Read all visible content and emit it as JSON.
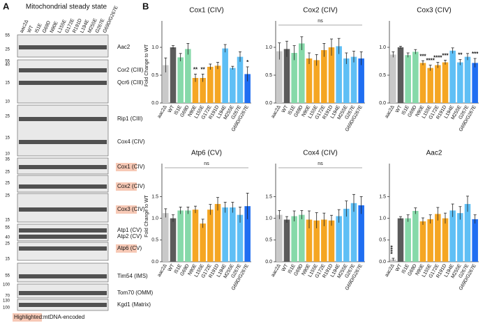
{
  "panel_a": {
    "letter": "A",
    "title": "Mitochondrial steady state",
    "lanes": [
      "aac2Δ",
      "WT",
      "I51E",
      "G69D",
      "N90E",
      "L155E",
      "G172E",
      "R191D",
      "L194E",
      "M255E",
      "G267E",
      "G69D/G267E"
    ],
    "rows": [
      {
        "labels": [
          "Aac2"
        ],
        "markers": [
          55,
          25
        ],
        "highlight": false
      },
      {
        "labels": [
          "Cor2 (CIII)",
          "Qcr6 (CIII)"
        ],
        "markers": [
          55,
          40,
          15,
          10
        ],
        "highlight": false
      },
      {
        "labels": [
          "Rip1 (CIII)",
          "Cox4 (CIV)"
        ],
        "markers": [
          25,
          15,
          10
        ],
        "highlight": false
      },
      {
        "labels": [
          "Cox1 (CIV)"
        ],
        "markers": [
          35,
          25
        ],
        "highlight": true
      },
      {
        "labels": [
          "Cox2 (CIV)"
        ],
        "markers": [
          25
        ],
        "highlight": true
      },
      {
        "labels": [
          "Cox3 (CIV)"
        ],
        "markers": [
          25,
          15
        ],
        "highlight": true
      },
      {
        "labels": [
          "Atp1 (CV)",
          "Atp2 (CV)"
        ],
        "markers": [
          55,
          40
        ],
        "highlight": false
      },
      {
        "labels": [
          "Atp6 (CV)"
        ],
        "markers": [
          25,
          15
        ],
        "highlight": true
      },
      {
        "labels": [
          "Tim54 (IMS)"
        ],
        "markers": [
          55
        ],
        "highlight": false
      },
      {
        "labels": [
          "Tom70 (OMM)"
        ],
        "markers": [
          100,
          70
        ],
        "highlight": false
      },
      {
        "labels": [
          "Kgd1 (Matrix)"
        ],
        "markers": [
          130,
          100
        ],
        "highlight": false
      }
    ],
    "footer_highlight": "Highlighted:",
    "footer_text": "mtDNA-encoded"
  },
  "panel_b_letter": "B",
  "chart_data": [
    {
      "type": "bar",
      "title": "Cox1 (CIV)",
      "y_label": "Fold Change to WT",
      "categories": [
        "aac2Δ",
        "WT",
        "I51E",
        "G69D",
        "N90E",
        "L155E",
        "G172E",
        "R191D",
        "L194E",
        "M255E",
        "G267E",
        "G69D/G267E"
      ],
      "values": [
        0.68,
        1.0,
        0.82,
        0.97,
        0.45,
        0.45,
        0.65,
        0.67,
        0.98,
        0.63,
        0.83,
        0.52
      ],
      "errors": [
        0.13,
        0.03,
        0.07,
        0.1,
        0.07,
        0.07,
        0.05,
        0.06,
        0.07,
        0.03,
        0.09,
        0.13
      ],
      "sig_labels": [
        null,
        null,
        null,
        null,
        "**",
        "**",
        null,
        null,
        null,
        null,
        null,
        "*"
      ],
      "colors": [
        "#c9c9c9",
        "#5b5b5b",
        "#86d9a9",
        "#86d9a9",
        "#f5a623",
        "#f5a623",
        "#f5a623",
        "#f5a623",
        "#5fbff5",
        "#5fbff5",
        "#5fbff5",
        "#1f6ef2"
      ],
      "ylim": [
        0,
        1.35
      ],
      "yticks": [
        {
          "value": 0,
          "label": "0.0"
        },
        {
          "value": 0.5,
          "label": "0.5"
        },
        {
          "value": 1,
          "label": "1.0"
        }
      ]
    },
    {
      "type": "bar",
      "title": "Cox2 (CIV)",
      "annotation": "ns",
      "categories": [
        "aac2Δ",
        "WT",
        "I51E",
        "G69D",
        "N90E",
        "L155E",
        "G172E",
        "R191D",
        "L194E",
        "M255E",
        "G267E",
        "G69D/G267E"
      ],
      "values": [
        0.93,
        0.97,
        0.9,
        1.07,
        0.8,
        0.77,
        0.95,
        1.0,
        1.02,
        0.8,
        0.83,
        0.8
      ],
      "errors": [
        0.15,
        0.14,
        0.13,
        0.12,
        0.1,
        0.1,
        0.12,
        0.15,
        0.14,
        0.1,
        0.1,
        0.12
      ],
      "colors": [
        "#c9c9c9",
        "#5b5b5b",
        "#86d9a9",
        "#86d9a9",
        "#f5a623",
        "#f5a623",
        "#f5a623",
        "#f5a623",
        "#5fbff5",
        "#5fbff5",
        "#5fbff5",
        "#1f6ef2"
      ],
      "ylim": [
        0,
        1.35
      ],
      "yticks": [
        {
          "value": 0,
          "label": "0.0"
        },
        {
          "value": 0.5,
          "label": "0.5"
        },
        {
          "value": 1,
          "label": "1.0"
        }
      ]
    },
    {
      "type": "bar",
      "title": "Cox3 (CIV)",
      "categories": [
        "aac2Δ",
        "WT",
        "I51E",
        "G69D",
        "N90E",
        "L155E",
        "G172E",
        "R191D",
        "L194E",
        "M255E",
        "G267E",
        "G69D/G267E"
      ],
      "values": [
        0.87,
        1.0,
        0.86,
        0.92,
        0.72,
        0.63,
        0.68,
        0.73,
        0.94,
        0.73,
        0.83,
        0.72
      ],
      "errors": [
        0.05,
        0.02,
        0.04,
        0.04,
        0.04,
        0.05,
        0.05,
        0.04,
        0.05,
        0.05,
        0.06,
        0.08
      ],
      "sig_labels": [
        null,
        null,
        null,
        null,
        "***",
        "****",
        "****",
        "***",
        null,
        "**",
        null,
        "***"
      ],
      "colors": [
        "#c9c9c9",
        "#5b5b5b",
        "#86d9a9",
        "#86d9a9",
        "#f5a623",
        "#f5a623",
        "#f5a623",
        "#f5a623",
        "#5fbff5",
        "#5fbff5",
        "#5fbff5",
        "#1f6ef2"
      ],
      "ylim": [
        0,
        1.35
      ],
      "yticks": [
        {
          "value": 0,
          "label": "0.0"
        },
        {
          "value": 0.5,
          "label": "0.5"
        },
        {
          "value": 1,
          "label": "1.0"
        }
      ]
    },
    {
      "type": "bar",
      "title": "Atp6 (CV)",
      "y_label": "Fold Change to WT",
      "annotation": "ns",
      "categories": [
        "aac2Δ",
        "WT",
        "I51E",
        "G69D",
        "N90E",
        "L155E",
        "G172E",
        "R191D",
        "L194E",
        "M255E",
        "G267E",
        "G69D/G267E"
      ],
      "values": [
        1.12,
        1.0,
        1.18,
        1.18,
        1.2,
        0.88,
        1.2,
        1.33,
        1.25,
        1.25,
        1.08,
        1.28
      ],
      "errors": [
        0.1,
        0.08,
        0.08,
        0.08,
        0.08,
        0.1,
        0.12,
        0.15,
        0.12,
        0.12,
        0.18,
        0.3
      ],
      "colors": [
        "#c9c9c9",
        "#5b5b5b",
        "#86d9a9",
        "#86d9a9",
        "#f5a623",
        "#f5a623",
        "#f5a623",
        "#f5a623",
        "#5fbff5",
        "#5fbff5",
        "#5fbff5",
        "#1f6ef2"
      ],
      "ylim": [
        0,
        2.1
      ],
      "yticks": [
        {
          "value": 0,
          "label": "0.0"
        },
        {
          "value": 0.5,
          "label": "0.5"
        },
        {
          "value": 1,
          "label": "1.0"
        },
        {
          "value": 1.5,
          "label": "1.5"
        }
      ]
    },
    {
      "type": "bar",
      "title": "Cox4 (CIV)",
      "annotation": "ns",
      "categories": [
        "aac2Δ",
        "WT",
        "I51E",
        "G69D",
        "N90E",
        "L155E",
        "G172E",
        "R191D",
        "L194E",
        "M255E",
        "G267E",
        "G69D/G267E"
      ],
      "values": [
        1.08,
        0.97,
        1.05,
        1.08,
        0.97,
        0.95,
        0.97,
        0.95,
        1.05,
        1.22,
        1.35,
        1.3
      ],
      "errors": [
        0.1,
        0.07,
        0.12,
        0.1,
        0.2,
        0.18,
        0.15,
        0.12,
        0.15,
        0.18,
        0.2,
        0.2
      ],
      "colors": [
        "#c9c9c9",
        "#5b5b5b",
        "#86d9a9",
        "#86d9a9",
        "#f5a623",
        "#f5a623",
        "#f5a623",
        "#f5a623",
        "#5fbff5",
        "#5fbff5",
        "#5fbff5",
        "#1f6ef2"
      ],
      "ylim": [
        0,
        2.1
      ],
      "yticks": [
        {
          "value": 0,
          "label": "0.0"
        },
        {
          "value": 0.5,
          "label": "0.5"
        },
        {
          "value": 1,
          "label": "1.0"
        },
        {
          "value": 1.5,
          "label": "1.5"
        }
      ]
    },
    {
      "type": "bar",
      "title": "Aac2",
      "categories": [
        "aac2Δ",
        "WT",
        "I51E",
        "G69D",
        "N90E",
        "L155E",
        "G172E",
        "R191D",
        "L194E",
        "M255E",
        "G267E",
        "G69D/G267E"
      ],
      "values": [
        0.05,
        1.0,
        1.0,
        1.17,
        0.93,
        0.98,
        1.1,
        1.0,
        1.18,
        1.12,
        1.33,
        0.98
      ],
      "errors": [
        0.03,
        0.04,
        0.08,
        0.07,
        0.08,
        0.1,
        0.15,
        0.12,
        0.15,
        0.15,
        0.18,
        0.1
      ],
      "sig_labels": [
        "****",
        null,
        null,
        null,
        null,
        null,
        null,
        null,
        null,
        null,
        null,
        null
      ],
      "colors": [
        "#c9c9c9",
        "#5b5b5b",
        "#86d9a9",
        "#86d9a9",
        "#f5a623",
        "#f5a623",
        "#f5a623",
        "#f5a623",
        "#5fbff5",
        "#5fbff5",
        "#5fbff5",
        "#1f6ef2"
      ],
      "ylim": [
        0,
        2.1
      ],
      "yticks": [
        {
          "value": 0,
          "label": "0.0"
        },
        {
          "value": 0.5,
          "label": "0.5"
        },
        {
          "value": 1,
          "label": "1.0"
        },
        {
          "value": 1.5,
          "label": "1.5"
        }
      ]
    }
  ]
}
